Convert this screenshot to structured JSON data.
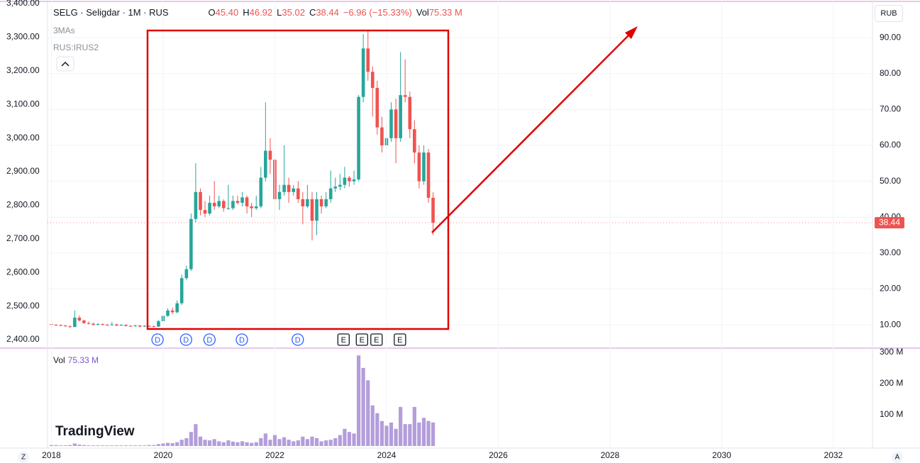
{
  "header": {
    "title": "SELG · Seligdar · 1M · RUS",
    "quote": [
      {
        "label": "O",
        "value": "45.40"
      },
      {
        "label": "H",
        "value": "46.92"
      },
      {
        "label": "L",
        "value": "35.02"
      },
      {
        "label": "C",
        "value": "38.44"
      },
      {
        "value": "−6.96 (−15.33%)"
      },
      {
        "label": "Vol",
        "value": "75.33 M"
      }
    ],
    "indicators": [
      "3MAs",
      "RUS:IRUS2"
    ],
    "currency": "RUB",
    "brand": "TradingView",
    "corner_left": "Z",
    "corner_right": "A"
  },
  "chart_data": [
    {
      "type": "candlestick",
      "up_color": "#26a69a",
      "down_color": "#ef5350",
      "grid": true,
      "x": [
        2018.0,
        2018.083,
        2018.167,
        2018.25,
        2018.333,
        2018.417,
        2018.5,
        2018.583,
        2018.667,
        2018.75,
        2018.833,
        2018.917,
        2019.0,
        2019.083,
        2019.167,
        2019.25,
        2019.333,
        2019.417,
        2019.5,
        2019.583,
        2019.667,
        2019.75,
        2019.833,
        2019.917,
        2020.0,
        2020.083,
        2020.167,
        2020.25,
        2020.333,
        2020.417,
        2020.5,
        2020.583,
        2020.667,
        2020.75,
        2020.833,
        2020.917,
        2021.0,
        2021.083,
        2021.167,
        2021.25,
        2021.333,
        2021.417,
        2021.5,
        2021.583,
        2021.667,
        2021.75,
        2021.833,
        2021.917,
        2022.0,
        2022.083,
        2022.167,
        2022.25,
        2022.333,
        2022.417,
        2022.5,
        2022.583,
        2022.667,
        2022.75,
        2022.833,
        2022.917,
        2023.0,
        2023.083,
        2023.167,
        2023.25,
        2023.333,
        2023.417,
        2023.5,
        2023.583,
        2023.667,
        2023.75,
        2023.833,
        2023.917,
        2024.0,
        2024.083,
        2024.167,
        2024.25,
        2024.333,
        2024.417,
        2024.5,
        2024.583,
        2024.667,
        2024.75,
        2024.833
      ],
      "open": [
        10.2,
        10.0,
        9.9,
        9.8,
        9.6,
        9.4,
        12.0,
        11.2,
        10.5,
        10.3,
        10.0,
        10.2,
        10.0,
        9.9,
        10.1,
        9.8,
        10.0,
        9.7,
        9.6,
        9.8,
        9.5,
        9.7,
        9.6,
        9.5,
        11.0,
        12.5,
        14.0,
        13.5,
        16.0,
        23.0,
        25.5,
        39.5,
        47.0,
        42.0,
        41.0,
        44.0,
        43.0,
        44.5,
        42.5,
        42.5,
        44.5,
        44.0,
        45.5,
        43.0,
        42.5,
        43.0,
        51.0,
        58.5,
        56.0,
        45.0,
        47.0,
        49.0,
        47.0,
        48.0,
        45.0,
        43.0,
        45.0,
        39.0,
        45.0,
        43.0,
        45.0,
        48.0,
        48.5,
        49.0,
        51.0,
        50.0,
        50.5,
        73.5,
        87.0,
        80.5,
        76.0,
        65.0,
        60.0,
        62.0,
        70.0,
        62.0,
        74.0,
        73.5,
        64.5,
        58.0,
        50.0,
        58.0,
        45.4
      ],
      "high": [
        10.4,
        10.2,
        10.1,
        9.9,
        9.8,
        14.0,
        12.6,
        11.4,
        10.9,
        10.6,
        10.5,
        10.4,
        10.3,
        10.8,
        10.3,
        10.2,
        10.1,
        9.9,
        10.0,
        9.9,
        9.9,
        9.8,
        9.8,
        11.4,
        12.9,
        14.6,
        14.8,
        16.8,
        24.0,
        26.5,
        41.0,
        55.0,
        48.0,
        44.5,
        46.0,
        50.0,
        46.0,
        45.0,
        49.0,
        46.0,
        46.0,
        47.0,
        46.0,
        44.0,
        46.0,
        54.0,
        72.0,
        62.0,
        58.0,
        49.0,
        60.0,
        51.0,
        49.0,
        50.0,
        47.0,
        49.0,
        47.0,
        47.0,
        46.0,
        47.0,
        53.0,
        51.0,
        52.0,
        54.0,
        51.5,
        53.0,
        74.0,
        91.0,
        92.0,
        82.0,
        78.0,
        68.0,
        66.0,
        72.0,
        73.0,
        86.0,
        84.0,
        75.0,
        67.0,
        60.0,
        60.0,
        59.0,
        46.92
      ],
      "low": [
        9.9,
        9.8,
        9.6,
        9.4,
        9.1,
        9.3,
        10.9,
        10.2,
        10.1,
        9.8,
        9.9,
        9.8,
        9.7,
        9.8,
        9.6,
        9.7,
        9.5,
        9.4,
        9.5,
        9.3,
        9.4,
        9.4,
        9.3,
        9.4,
        10.6,
        12.2,
        13.0,
        13.2,
        15.5,
        22.5,
        25.0,
        38.5,
        40.5,
        40.0,
        40.5,
        42.0,
        42.5,
        41.5,
        42.0,
        42.0,
        43.5,
        43.0,
        41.0,
        40.0,
        42.0,
        42.5,
        50.0,
        52.0,
        36.0,
        42.0,
        46.0,
        44.0,
        46.0,
        44.0,
        38.0,
        42.5,
        33.5,
        35.0,
        41.0,
        42.5,
        44.0,
        47.0,
        47.5,
        48.0,
        48.5,
        49.0,
        50.0,
        72.0,
        78.0,
        68.0,
        63.0,
        58.0,
        59.0,
        61.0,
        55.0,
        61.0,
        72.0,
        62.0,
        55.0,
        48.0,
        49.0,
        44.0,
        35.02
      ],
      "close": [
        10.0,
        9.9,
        9.8,
        9.6,
        9.4,
        12.0,
        11.2,
        10.5,
        10.3,
        10.0,
        10.2,
        10.0,
        9.9,
        10.1,
        9.8,
        10.0,
        9.7,
        9.6,
        9.8,
        9.5,
        9.7,
        9.6,
        9.5,
        11.0,
        12.5,
        14.0,
        13.5,
        16.0,
        23.0,
        25.5,
        39.5,
        47.0,
        42.0,
        41.0,
        44.0,
        43.0,
        44.5,
        42.5,
        42.5,
        44.5,
        44.0,
        45.5,
        43.0,
        42.5,
        43.0,
        51.0,
        58.5,
        56.0,
        45.0,
        47.0,
        49.0,
        47.0,
        48.0,
        45.0,
        43.0,
        45.0,
        39.0,
        45.0,
        43.0,
        45.0,
        48.0,
        48.5,
        49.0,
        51.0,
        50.0,
        50.5,
        73.5,
        87.0,
        80.5,
        76.0,
        65.0,
        60.0,
        62.0,
        70.0,
        62.0,
        74.0,
        73.5,
        64.5,
        58.0,
        50.0,
        58.0,
        45.4,
        38.44
      ],
      "xlim": [
        2017.93,
        2032.7
      ],
      "ylim": [
        3.7,
        100.5
      ],
      "yticks": [
        {
          "value": 10,
          "label": "10.00"
        },
        {
          "value": 20,
          "label": "20.00"
        },
        {
          "value": 30,
          "label": "30.00"
        },
        {
          "value": 40,
          "label": "40.00"
        },
        {
          "value": 50,
          "label": "50.00"
        },
        {
          "value": 60,
          "label": "60.00"
        },
        {
          "value": 70,
          "label": "70.00"
        },
        {
          "value": 80,
          "label": "80.00"
        },
        {
          "value": 90,
          "label": "90.00"
        }
      ],
      "y2lim": [
        2376.8,
        3410.5
      ],
      "y2ticks": [
        {
          "value": 2400,
          "label": "2,400.00"
        },
        {
          "value": 2500,
          "label": "2,500.00"
        },
        {
          "value": 2600,
          "label": "2,600.00"
        },
        {
          "value": 2700,
          "label": "2,700.00"
        },
        {
          "value": 2800,
          "label": "2,800.00"
        },
        {
          "value": 2900,
          "label": "2,900.00"
        },
        {
          "value": 3000,
          "label": "3,000.00"
        },
        {
          "value": 3100,
          "label": "3,100.00"
        },
        {
          "value": 3200,
          "label": "3,200.00"
        },
        {
          "value": 3300,
          "label": "3,300.00"
        },
        {
          "value": 3400,
          "label": "3,400.00"
        }
      ],
      "events": [
        {
          "label": "D",
          "x": 2019.9
        },
        {
          "label": "D",
          "x": 2020.41
        },
        {
          "label": "D",
          "x": 2020.83
        },
        {
          "label": "D",
          "x": 2021.41
        },
        {
          "label": "D",
          "x": 2022.41
        },
        {
          "label": "E",
          "x": 2023.23
        },
        {
          "label": "E",
          "x": 2023.56
        },
        {
          "label": "E",
          "x": 2023.82
        },
        {
          "label": "E",
          "x": 2024.24
        }
      ]
    },
    {
      "type": "bar",
      "name": "Vol",
      "value_label": "75.33 M",
      "color": "#b39ddb",
      "values": [
        3,
        3,
        2,
        2,
        3,
        8,
        4,
        3,
        2,
        2,
        2,
        2,
        2,
        2,
        2,
        2,
        2,
        2,
        2,
        2,
        2,
        3,
        3,
        6,
        8,
        10,
        9,
        12,
        20,
        25,
        45,
        70,
        30,
        20,
        18,
        22,
        15,
        12,
        18,
        14,
        12,
        15,
        12,
        10,
        12,
        25,
        40,
        20,
        35,
        22,
        28,
        20,
        15,
        18,
        30,
        22,
        30,
        25,
        15,
        18,
        20,
        25,
        35,
        55,
        45,
        40,
        290,
        250,
        210,
        130,
        105,
        80,
        65,
        75,
        55,
        125,
        70,
        70,
        125,
        75,
        90,
        80,
        75.33
      ],
      "xlim": [
        2017.93,
        2032.7
      ],
      "ylim": [
        0,
        311
      ],
      "yticks": [
        {
          "value": 100,
          "label": "100 M"
        },
        {
          "value": 200,
          "label": "200 M"
        },
        {
          "value": 300,
          "label": "300 M"
        }
      ],
      "xticks": [
        2018,
        2020,
        2022,
        2024,
        2026,
        2028,
        2030,
        2032
      ]
    }
  ]
}
